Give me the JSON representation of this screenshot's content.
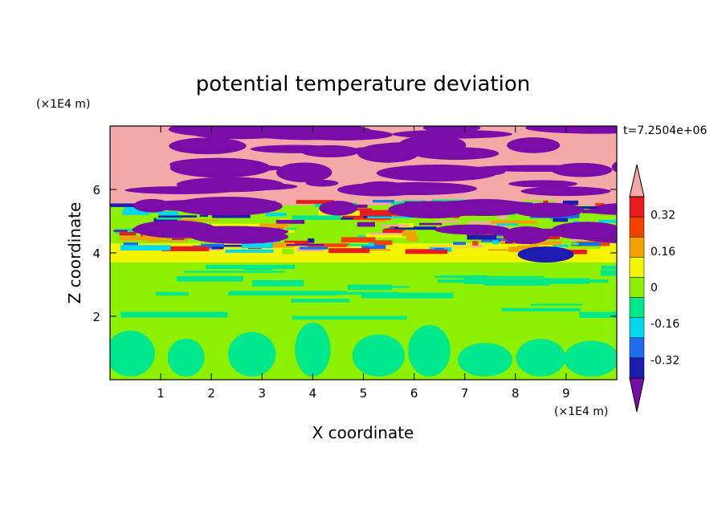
{
  "chart_data": {
    "type": "heatmap",
    "title": "potential temperature deviation",
    "xlabel": "X coordinate",
    "ylabel": "Z coordinate",
    "x_unit": "(×1E4 m)",
    "y_unit": "(×1E4 m)",
    "time_label": "t=7.2504e+06",
    "xlim": [
      0,
      10
    ],
    "ylim": [
      0,
      8
    ],
    "x_ticks": [
      "1",
      "2",
      "3",
      "4",
      "5",
      "6",
      "7",
      "8",
      "9"
    ],
    "y_ticks": [
      "2",
      "4",
      "6"
    ],
    "colorbar": {
      "levels": [
        -0.4,
        -0.32,
        -0.24,
        -0.16,
        -0.08,
        0,
        0.08,
        0.16,
        0.24,
        0.32,
        0.4
      ],
      "labels": [
        "0.32",
        "0.16",
        "0",
        "-0.16",
        "-0.32"
      ],
      "colors": [
        "#7a0ca8",
        "#1c1cb0",
        "#1c6cf0",
        "#00d8f0",
        "#00e88c",
        "#8cf000",
        "#f4f400",
        "#f4a000",
        "#f44000",
        "#e81c1c",
        "#f4a8a8"
      ],
      "extend": "both"
    },
    "layers": [
      {
        "z_range": [
          0,
          0.3
        ],
        "dominant": "#8cf000"
      },
      {
        "z_range": [
          0.3,
          2.0
        ],
        "dominant": "#8cf000",
        "secondary": "#00e88c",
        "feature": "convective plumes"
      },
      {
        "z_range": [
          2.0,
          3.7
        ],
        "dominant": "#8cf000",
        "secondary": "#00e88c"
      },
      {
        "z_range": [
          3.7,
          4.3
        ],
        "dominant": "#f4f400"
      },
      {
        "z_range": [
          4.3,
          5.6
        ],
        "dominant": "mixed",
        "feature": "turbulent transition"
      },
      {
        "z_range": [
          5.6,
          8.0
        ],
        "dominant": "#f4a8a8",
        "secondary": "#7a0ca8",
        "feature": "alternating layers"
      }
    ]
  }
}
